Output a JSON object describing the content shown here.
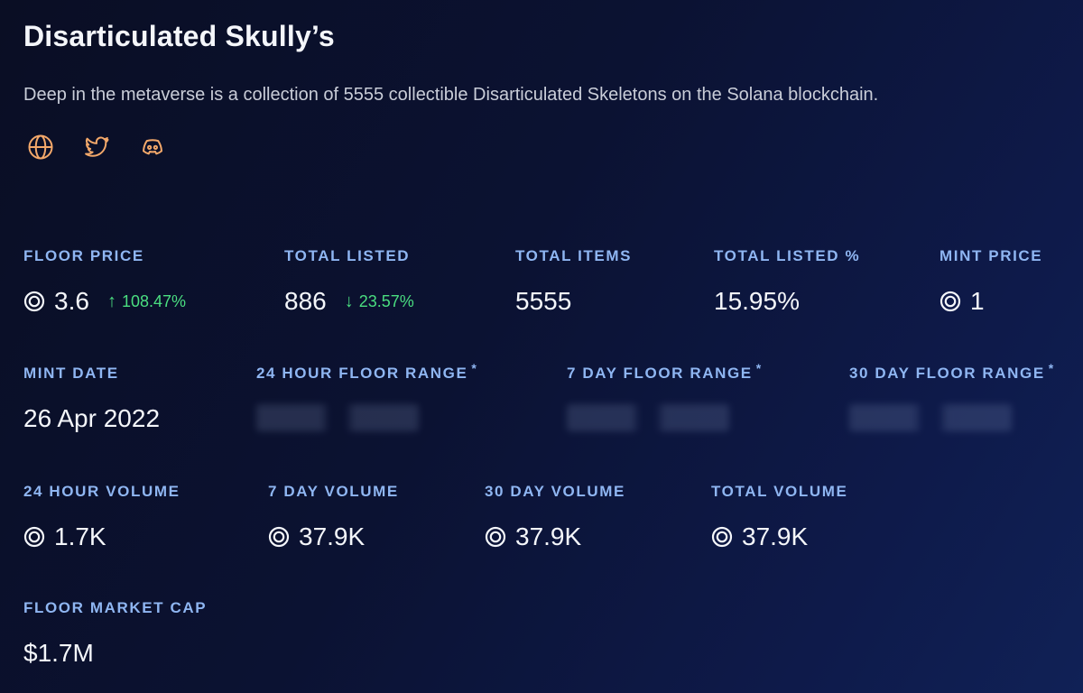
{
  "collection": {
    "title": "Disarticulated Skully’s",
    "description": "Deep in the metaverse is a collection of 5555 collectible Disarticulated Skeletons on the Solana blockchain.",
    "socials": [
      {
        "name": "globe-icon",
        "label": "website"
      },
      {
        "name": "twitter-icon",
        "label": "twitter"
      },
      {
        "name": "discord-icon",
        "label": "discord"
      }
    ]
  },
  "colors": {
    "accent_icon": "#f3a86a",
    "label": "#8fb6f2",
    "positive_change": "#4ade80"
  },
  "stats": {
    "floor_price": {
      "label": "FLOOR PRICE",
      "value": "3.6",
      "change": "108.47%",
      "change_direction": "up"
    },
    "total_listed": {
      "label": "TOTAL LISTED",
      "value": "886",
      "change": "23.57%",
      "change_direction": "down"
    },
    "total_items": {
      "label": "TOTAL ITEMS",
      "value": "5555"
    },
    "total_listed_pct": {
      "label": "TOTAL LISTED %",
      "value": "15.95%"
    },
    "mint_price": {
      "label": "MINT PRICE",
      "value": "1"
    },
    "mint_date": {
      "label": "MINT DATE",
      "value": "26 Apr 2022"
    },
    "floor_range_24h": {
      "label": "24 HOUR FLOOR RANGE",
      "star": "*"
    },
    "floor_range_7d": {
      "label": "7 DAY FLOOR RANGE",
      "star": "*"
    },
    "floor_range_30d": {
      "label": "30 DAY FLOOR RANGE",
      "star": "*"
    },
    "volume_24h": {
      "label": "24 HOUR VOLUME",
      "value": "1.7K"
    },
    "volume_7d": {
      "label": "7 DAY VOLUME",
      "value": "37.9K"
    },
    "volume_30d": {
      "label": "30 DAY VOLUME",
      "value": "37.9K"
    },
    "volume_total": {
      "label": "TOTAL VOLUME",
      "value": "37.9K"
    },
    "floor_market_cap": {
      "label": "FLOOR MARKET CAP",
      "value": "$1.7M"
    }
  }
}
